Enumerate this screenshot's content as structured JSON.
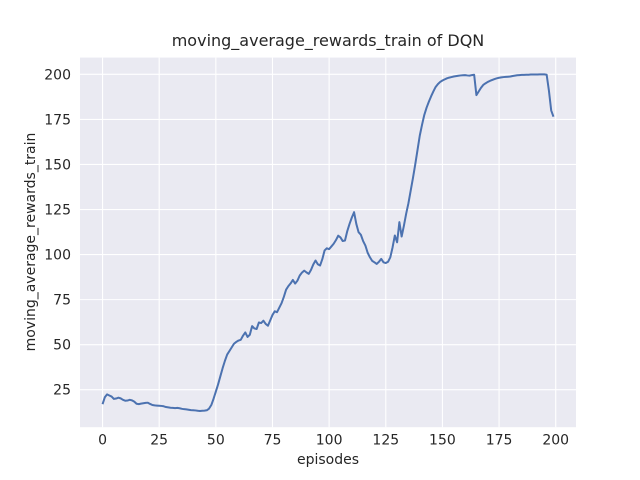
{
  "figure": {
    "background": "#ffffff",
    "axes_background": "#eaeaf2",
    "grid_color": "#ffffff",
    "text_color": "#262626"
  },
  "chart_data": {
    "type": "line",
    "title": "moving_average_rewards_train of DQN",
    "xlabel": "episodes",
    "ylabel": "moving_average_rewards_train",
    "x_ticks": [
      0,
      25,
      50,
      75,
      100,
      125,
      150,
      175,
      200
    ],
    "y_ticks": [
      25,
      50,
      75,
      100,
      125,
      150,
      175,
      200
    ],
    "xlim": [
      -9.95,
      208.95
    ],
    "ylim": [
      4.2,
      209.3
    ],
    "grid": true,
    "legend": false,
    "series": [
      {
        "name": "moving_average_rewards_train",
        "color": "#4c72b0",
        "line_width": 2,
        "x0": 0,
        "dx": 1,
        "values": [
          17.0,
          20.8,
          22.4,
          21.8,
          21.2,
          19.9,
          20.1,
          20.6,
          20.2,
          19.4,
          18.9,
          19.0,
          19.4,
          19.1,
          18.4,
          17.2,
          17.0,
          17.3,
          17.5,
          17.7,
          17.8,
          17.1,
          16.5,
          16.3,
          16.2,
          16.1,
          16.0,
          15.8,
          15.4,
          15.2,
          15.0,
          14.9,
          14.8,
          14.9,
          14.7,
          14.4,
          14.2,
          14.1,
          13.9,
          13.7,
          13.6,
          13.5,
          13.3,
          13.2,
          13.3,
          13.4,
          13.6,
          14.5,
          16.5,
          20.0,
          24.0,
          28.0,
          32.5,
          37.0,
          41.0,
          44.5,
          46.5,
          48.5,
          50.5,
          51.5,
          52.3,
          52.7,
          55.0,
          56.8,
          54.3,
          55.5,
          60.3,
          59.0,
          58.7,
          62.3,
          62.0,
          63.3,
          61.5,
          60.5,
          63.5,
          66.5,
          68.5,
          68.0,
          70.5,
          73.0,
          76.5,
          80.5,
          82.5,
          84.0,
          85.9,
          83.9,
          85.5,
          88.3,
          90.0,
          91.1,
          90.1,
          89.3,
          91.5,
          94.5,
          96.7,
          94.6,
          93.9,
          97.5,
          102.3,
          103.5,
          103.0,
          104.5,
          106.0,
          108.0,
          110.5,
          109.5,
          107.5,
          107.8,
          113.0,
          117.0,
          120.5,
          123.5,
          117.0,
          112.4,
          111.0,
          107.5,
          105.0,
          101.0,
          98.5,
          96.5,
          95.7,
          94.8,
          96.0,
          97.6,
          95.7,
          95.3,
          96.0,
          98.5,
          104.0,
          110.6,
          106.8,
          118.0,
          110.0,
          116.0,
          122.7,
          128.5,
          135.5,
          142.5,
          150.0,
          158.0,
          166.0,
          172.0,
          177.5,
          181.5,
          184.8,
          187.8,
          190.5,
          193.0,
          194.6,
          195.8,
          196.6,
          197.2,
          197.8,
          198.2,
          198.5,
          198.8,
          199.0,
          199.2,
          199.4,
          199.5,
          199.6,
          199.4,
          199.3,
          199.6,
          199.8,
          188.5,
          190.5,
          192.5,
          194.1,
          195.0,
          195.8,
          196.4,
          196.9,
          197.4,
          197.8,
          198.1,
          198.3,
          198.5,
          198.6,
          198.7,
          198.8,
          199.1,
          199.3,
          199.5,
          199.6,
          199.7,
          199.7,
          199.8,
          199.8,
          199.9,
          199.9,
          199.9,
          199.9,
          200.0,
          200.0,
          200.0,
          199.8,
          191.0,
          180.0,
          176.5
        ]
      }
    ]
  }
}
